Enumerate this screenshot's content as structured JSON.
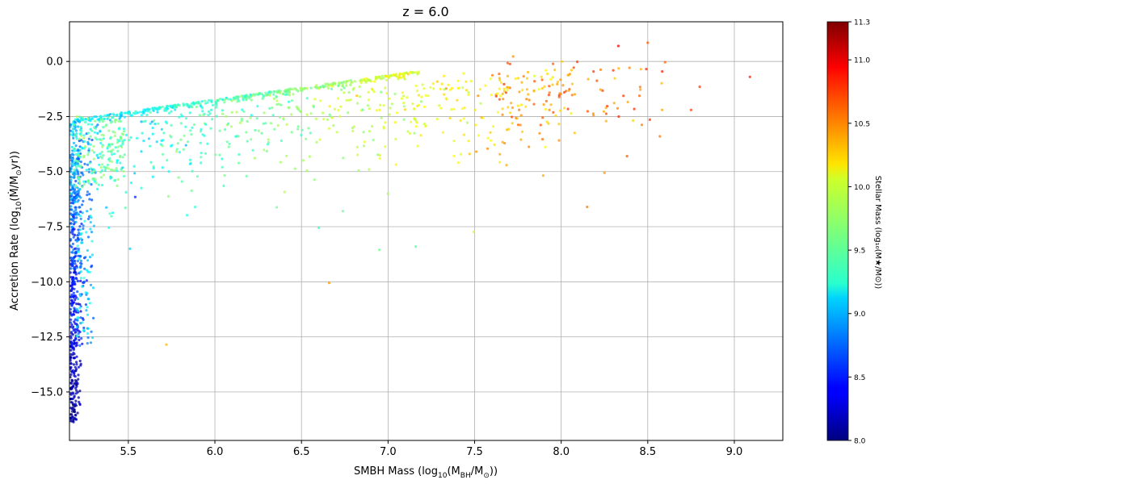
{
  "chart_data": {
    "type": "scatter",
    "title": "z = 6.0",
    "xlabel": {
      "base": "SMBH Mass (log",
      "sub1": "10",
      "mid": "(M",
      "sub2": "BH",
      "mid2": "/M",
      "sub3": "⊙",
      "end": "))"
    },
    "ylabel": {
      "base": "Accretion Rate (log",
      "sub1": "10",
      "mid": "(Ṁ/M",
      "sub2": "⊙",
      "end": "yr))"
    },
    "xlim": [
      5.16,
      9.28
    ],
    "ylim": [
      -17.2,
      1.8
    ],
    "xticks": [
      5.5,
      6.0,
      6.5,
      7.0,
      7.5,
      8.0,
      8.5,
      9.0
    ],
    "xtick_labels": [
      "5.5",
      "6.0",
      "6.5",
      "7.0",
      "7.5",
      "8.0",
      "8.5",
      "9.0"
    ],
    "yticks": [
      0.0,
      -2.5,
      -5.0,
      -7.5,
      -10.0,
      -12.5,
      -15.0
    ],
    "ytick_labels": [
      "0.0",
      "−2.5",
      "−5.0",
      "−7.5",
      "−10.0",
      "−12.5",
      "−15.0"
    ],
    "grid": true,
    "colorbar": {
      "label": "Stellar Mass (log₁₀(M★/M⊙))",
      "range": [
        8.0,
        11.3
      ],
      "ticks": [
        8.0,
        8.5,
        9.0,
        9.5,
        10.0,
        10.5,
        11.0,
        11.3
      ],
      "tick_labels": [
        "8.0",
        "8.5",
        "9.0",
        "9.5",
        "10.0",
        "10.5",
        "11.0",
        "11.3"
      ],
      "colormap": "jet"
    },
    "highlight_points": [
      {
        "x": 8.33,
        "y": 0.7,
        "c": 10.9
      },
      {
        "x": 8.5,
        "y": 0.85,
        "c": 10.6
      },
      {
        "x": 9.09,
        "y": -0.7,
        "c": 10.8
      },
      {
        "x": 8.8,
        "y": -1.15,
        "c": 10.7
      },
      {
        "x": 8.75,
        "y": -2.2,
        "c": 10.7
      },
      {
        "x": 8.57,
        "y": -3.4,
        "c": 10.5
      },
      {
        "x": 8.38,
        "y": -4.3,
        "c": 10.6
      },
      {
        "x": 8.25,
        "y": -5.05,
        "c": 10.4
      },
      {
        "x": 8.15,
        "y": -6.6,
        "c": 10.5
      },
      {
        "x": 6.66,
        "y": -10.05,
        "c": 10.4
      },
      {
        "x": 5.72,
        "y": -12.85,
        "c": 10.3
      },
      {
        "x": 7.0,
        "y": -6.0,
        "c": 9.8
      },
      {
        "x": 7.16,
        "y": -8.4,
        "c": 9.5
      },
      {
        "x": 6.95,
        "y": -8.55,
        "c": 9.6
      },
      {
        "x": 6.6,
        "y": -7.55,
        "c": 9.4
      },
      {
        "x": 5.51,
        "y": -8.5,
        "c": 9.1
      },
      {
        "x": 5.54,
        "y": -6.15,
        "c": 8.5
      }
    ]
  }
}
